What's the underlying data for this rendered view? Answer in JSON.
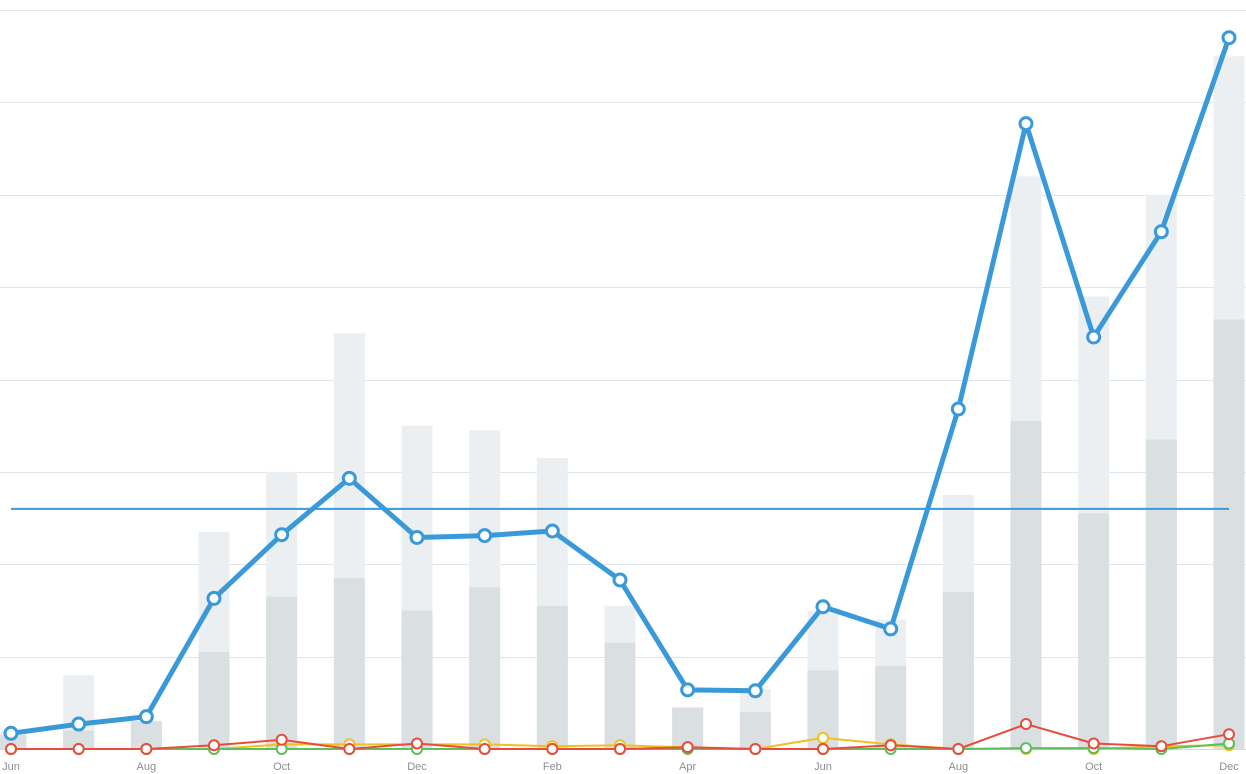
{
  "chart_data": {
    "type": "line",
    "x_labels": [
      "Jun",
      "",
      "Aug",
      "",
      "Oct",
      "",
      "Dec",
      "",
      "Feb",
      "",
      "Apr",
      "",
      "Jun",
      "",
      "Aug",
      "",
      "Oct",
      "",
      "Dec"
    ],
    "ylim": [
      0,
      8
    ],
    "grid": true,
    "average_line": 2.6,
    "bars": {
      "total": [
        0.2,
        0.8,
        0.3,
        2.35,
        3.0,
        4.5,
        3.5,
        3.45,
        3.15,
        1.55,
        0.45,
        0.65,
        1.5,
        1.4,
        2.75,
        6.2,
        4.9,
        6.0,
        7.5
      ],
      "part": [
        0.15,
        0.2,
        0.3,
        1.05,
        1.65,
        1.85,
        1.5,
        1.75,
        1.55,
        1.15,
        0.45,
        0.4,
        0.85,
        0.9,
        1.7,
        3.55,
        2.55,
        3.35,
        4.65
      ],
      "colors": {
        "total": "#eceff1",
        "part": "#dadfe2"
      }
    },
    "series": [
      {
        "color": "#3a9ad9",
        "values": [
          0.17,
          0.27,
          0.35,
          1.63,
          2.32,
          2.93,
          2.29,
          2.31,
          2.36,
          1.83,
          0.64,
          0.63,
          1.54,
          1.3,
          3.68,
          6.77,
          4.46,
          5.6,
          7.7
        ]
      },
      {
        "color": "#f2c01e",
        "values": [
          0.0,
          0.0,
          0.0,
          0.0,
          0.05,
          0.05,
          0.05,
          0.05,
          0.03,
          0.04,
          0.02,
          0.0,
          0.12,
          0.05,
          0.0,
          0.0,
          0.0,
          0.03,
          0.04
        ]
      },
      {
        "color": "#5cc05c",
        "values": [
          0.0,
          0.0,
          0.0,
          0.0,
          0.0,
          0.0,
          0.0,
          0.0,
          0.0,
          0.0,
          0.0,
          0.0,
          0.0,
          0.0,
          0.0,
          0.01,
          0.01,
          0.0,
          0.06
        ]
      },
      {
        "color": "#e74c3c",
        "values": [
          0.0,
          0.0,
          0.0,
          0.04,
          0.1,
          0.0,
          0.06,
          0.0,
          0.0,
          0.0,
          0.02,
          0.0,
          0.0,
          0.04,
          0.0,
          0.27,
          0.06,
          0.03,
          0.16
        ]
      }
    ]
  }
}
